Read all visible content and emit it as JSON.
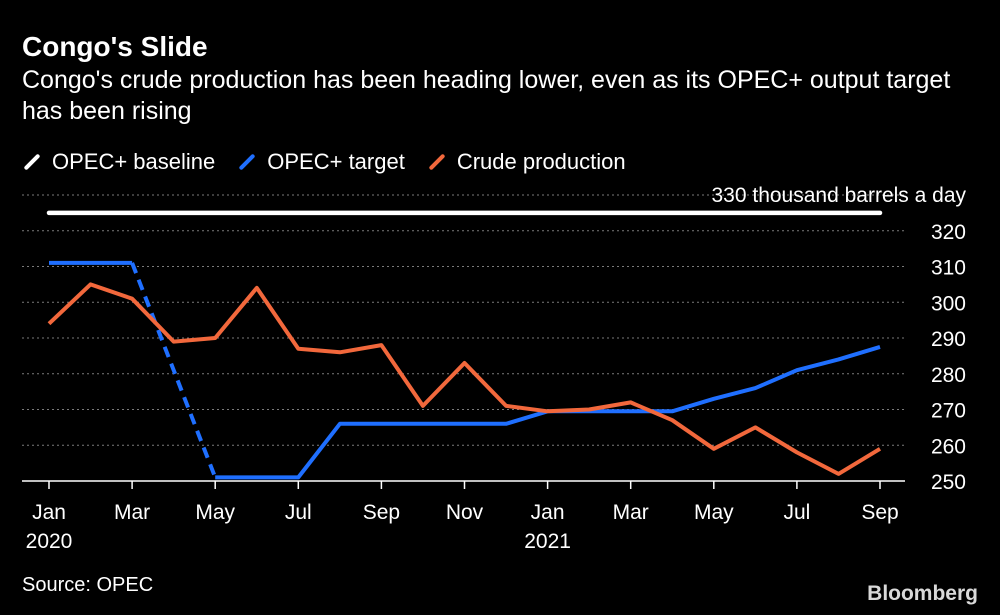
{
  "chart_data": {
    "type": "line",
    "title": "Congo's Slide",
    "subtitle": "Congo's crude production has been heading lower, even as its OPEC+ output target has been rising",
    "x": [
      "2020-01",
      "2020-02",
      "2020-03",
      "2020-04",
      "2020-05",
      "2020-06",
      "2020-07",
      "2020-08",
      "2020-09",
      "2020-10",
      "2020-11",
      "2020-12",
      "2021-01",
      "2021-02",
      "2021-03",
      "2021-04",
      "2021-05",
      "2021-06",
      "2021-07",
      "2021-08",
      "2021-09"
    ],
    "x_tick_labels": [
      {
        "x": "2020-01",
        "label": "Jan",
        "year": "2020"
      },
      {
        "x": "2020-03",
        "label": "Mar",
        "year": ""
      },
      {
        "x": "2020-05",
        "label": "May",
        "year": ""
      },
      {
        "x": "2020-07",
        "label": "Jul",
        "year": ""
      },
      {
        "x": "2020-09",
        "label": "Sep",
        "year": ""
      },
      {
        "x": "2020-11",
        "label": "Nov",
        "year": ""
      },
      {
        "x": "2021-01",
        "label": "Jan",
        "year": "2021"
      },
      {
        "x": "2021-03",
        "label": "Mar",
        "year": ""
      },
      {
        "x": "2021-05",
        "label": "May",
        "year": ""
      },
      {
        "x": "2021-07",
        "label": "Jul",
        "year": ""
      },
      {
        "x": "2021-09",
        "label": "Sep",
        "year": ""
      }
    ],
    "y_ticks": [
      250,
      260,
      270,
      280,
      290,
      300,
      310,
      320
    ],
    "ylim": [
      250,
      330
    ],
    "grid": true,
    "legend_position": "top-left",
    "series": [
      {
        "name": "OPEC+ baseline",
        "color": "#ffffff",
        "values": [
          325,
          325,
          325,
          325,
          325,
          325,
          325,
          325,
          325,
          325,
          325,
          325,
          325,
          325,
          325,
          325,
          325,
          325,
          325,
          325,
          325
        ],
        "annotation": "330 thousand barrels a day"
      },
      {
        "name": "OPEC+ target",
        "color": "#1f6fff",
        "values": [
          311,
          311,
          311,
          281,
          251,
          251,
          251,
          266,
          266,
          266,
          266,
          266,
          269.5,
          269.5,
          269.5,
          269.5,
          273,
          276,
          281,
          284,
          287.5
        ],
        "dashed_between": [
          "2020-03",
          "2020-05"
        ]
      },
      {
        "name": "Crude production",
        "color": "#f2683c",
        "values": [
          294,
          305,
          301,
          289,
          290,
          304,
          287,
          286,
          288,
          271,
          283,
          271,
          269.5,
          270,
          272,
          267,
          259,
          265,
          258,
          252,
          259
        ]
      }
    ]
  },
  "source": "Source: OPEC",
  "brand": "Bloomberg"
}
